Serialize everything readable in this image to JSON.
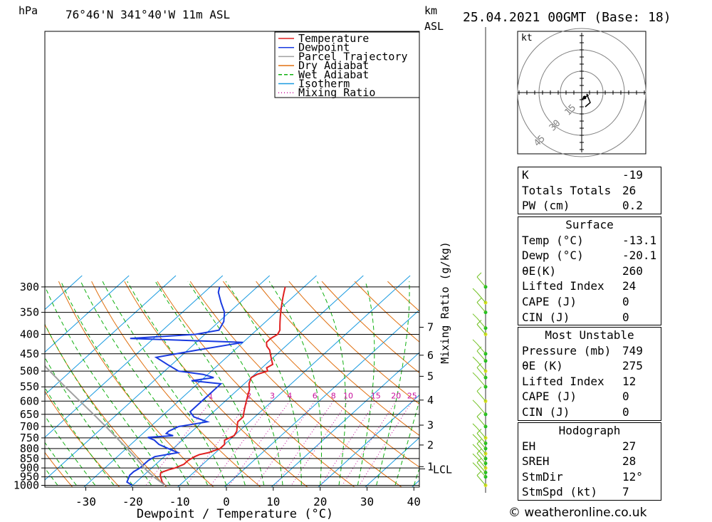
{
  "header": {
    "hpa_label": "hPa",
    "location": "76°46'N  341°40'W  11m  ASL",
    "km_label": "km",
    "asl_label": "ASL",
    "datetime": "25.04.2021  00GMT  (Base: 18)"
  },
  "chart_data": {
    "type": "line",
    "title": "76°46'N  341°40'W  11m  ASL",
    "xlabel": "Dewpoint / Temperature (°C)",
    "ylabel": "hPa",
    "y2label": "Mixing Ratio (g/kg)",
    "xlim": [
      -40,
      40
    ],
    "ylim": [
      1000,
      300
    ],
    "x_ticks": [
      "-30",
      "-20",
      "-10",
      "0",
      "10",
      "20",
      "30",
      "40"
    ],
    "p_ticks": [
      "300",
      "350",
      "400",
      "450",
      "500",
      "550",
      "600",
      "650",
      "700",
      "750",
      "800",
      "850",
      "900",
      "950",
      "1000"
    ],
    "km_ticks": [
      {
        "label": "7",
        "p": 383
      },
      {
        "label": "6",
        "p": 454
      },
      {
        "label": "5",
        "p": 516
      },
      {
        "label": "4",
        "p": 596
      },
      {
        "label": "3",
        "p": 694
      },
      {
        "label": "2",
        "p": 783
      },
      {
        "label": "1",
        "p": 893
      }
    ],
    "lcl": {
      "label": "LCL",
      "p": 905
    },
    "mixing_ratio_labels": [
      "1",
      "2",
      "3",
      "4",
      "6",
      "8",
      "10",
      "15",
      "20",
      "25"
    ],
    "legend": [
      {
        "name": "Temperature",
        "color": "#e02020",
        "style": "solid"
      },
      {
        "name": "Dewpoint",
        "color": "#1a3be0",
        "style": "solid"
      },
      {
        "name": "Parcel Trajectory",
        "color": "#a0a0a0",
        "style": "solid"
      },
      {
        "name": "Dry Adiabat",
        "color": "#e07010",
        "style": "solid"
      },
      {
        "name": "Wet Adiabat",
        "color": "#10b010",
        "style": "dashed"
      },
      {
        "name": "Isotherm",
        "color": "#1a9be0",
        "style": "solid"
      },
      {
        "name": "Mixing Ratio",
        "color": "#c8109c",
        "style": "dotted"
      }
    ],
    "series": [
      {
        "name": "Temperature",
        "color": "#e02020",
        "points": [
          [
            1000,
            -13.1
          ],
          [
            980,
            -14.5
          ],
          [
            960,
            -15.5
          ],
          [
            940,
            -16.5
          ],
          [
            925,
            -17
          ],
          [
            910,
            -16
          ],
          [
            900,
            -15
          ],
          [
            880,
            -14
          ],
          [
            860,
            -14
          ],
          [
            840,
            -13.5
          ],
          [
            830,
            -13
          ],
          [
            820,
            -11.5
          ],
          [
            800,
            -10
          ],
          [
            780,
            -10
          ],
          [
            760,
            -11
          ],
          [
            740,
            -10
          ],
          [
            720,
            -10.5
          ],
          [
            700,
            -11.5
          ],
          [
            680,
            -12.5
          ],
          [
            660,
            -12.5
          ],
          [
            640,
            -13.5
          ],
          [
            620,
            -14.5
          ],
          [
            600,
            -15.5
          ],
          [
            580,
            -16.5
          ],
          [
            560,
            -17.5
          ],
          [
            540,
            -19
          ],
          [
            520,
            -20
          ],
          [
            510,
            -19.5
          ],
          [
            500,
            -18
          ],
          [
            490,
            -19
          ],
          [
            480,
            -18.5
          ],
          [
            470,
            -19.5
          ],
          [
            460,
            -20.5
          ],
          [
            450,
            -21.5
          ],
          [
            440,
            -22.5
          ],
          [
            430,
            -24
          ],
          [
            420,
            -25
          ],
          [
            410,
            -25
          ],
          [
            400,
            -24.5
          ],
          [
            390,
            -25
          ],
          [
            380,
            -26
          ],
          [
            370,
            -27
          ],
          [
            360,
            -28
          ],
          [
            350,
            -29
          ],
          [
            340,
            -30
          ],
          [
            330,
            -31
          ],
          [
            320,
            -32
          ],
          [
            310,
            -33
          ],
          [
            300,
            -34
          ]
        ]
      },
      {
        "name": "Dewpoint",
        "color": "#1a3be0",
        "points": [
          [
            1000,
            -20.1
          ],
          [
            980,
            -22
          ],
          [
            960,
            -22.5
          ],
          [
            940,
            -23
          ],
          [
            920,
            -23
          ],
          [
            900,
            -22.5
          ],
          [
            880,
            -22.5
          ],
          [
            860,
            -22.5
          ],
          [
            840,
            -22
          ],
          [
            820,
            -18
          ],
          [
            800,
            -21
          ],
          [
            780,
            -24
          ],
          [
            760,
            -26
          ],
          [
            748,
            -28
          ],
          [
            740,
            -23
          ],
          [
            730,
            -25
          ],
          [
            720,
            -25
          ],
          [
            700,
            -24
          ],
          [
            680,
            -19
          ],
          [
            660,
            -23
          ],
          [
            640,
            -25
          ],
          [
            620,
            -25
          ],
          [
            600,
            -25
          ],
          [
            580,
            -25
          ],
          [
            560,
            -25
          ],
          [
            540,
            -25
          ],
          [
            530,
            -32
          ],
          [
            520,
            -28
          ],
          [
            510,
            -31
          ],
          [
            500,
            -37
          ],
          [
            480,
            -41
          ],
          [
            460,
            -45
          ],
          [
            440,
            -38
          ],
          [
            420,
            -30
          ],
          [
            410,
            -55
          ],
          [
            400,
            -42
          ],
          [
            390,
            -38
          ],
          [
            370,
            -39
          ],
          [
            350,
            -41
          ],
          [
            330,
            -44
          ],
          [
            310,
            -47
          ],
          [
            300,
            -48
          ]
        ]
      },
      {
        "name": "Parcel Trajectory",
        "color": "#a0a0a0",
        "points": [
          [
            1000,
            -13.1
          ],
          [
            950,
            -17.5
          ],
          [
            905,
            -21.2
          ],
          [
            850,
            -25.5
          ],
          [
            800,
            -29.8
          ],
          [
            750,
            -34.5
          ],
          [
            700,
            -39.5
          ],
          [
            650,
            -45
          ],
          [
            600,
            -51
          ],
          [
            550,
            -57.5
          ],
          [
            500,
            -64.5
          ],
          [
            450,
            -72
          ]
        ]
      }
    ]
  },
  "hodograph": {
    "unit": "kt",
    "rings": [
      "15",
      "30",
      "45"
    ]
  },
  "indices": {
    "k_label": "K",
    "k_value": "-19",
    "tt_label": "Totals Totals",
    "tt_value": "26",
    "pw_label": "PW (cm)",
    "pw_value": "0.2"
  },
  "surface": {
    "header": "Surface",
    "rows": [
      {
        "label": "Temp (°C)",
        "value": "-13.1"
      },
      {
        "label": "Dewp (°C)",
        "value": "-20.1"
      },
      {
        "label": "θE(K)",
        "value": "260"
      },
      {
        "label": "Lifted Index",
        "value": "24"
      },
      {
        "label": "CAPE (J)",
        "value": "0"
      },
      {
        "label": "CIN (J)",
        "value": "0"
      }
    ]
  },
  "most_unstable": {
    "header": "Most Unstable",
    "rows": [
      {
        "label": "Pressure (mb)",
        "value": "749"
      },
      {
        "label": "θE (K)",
        "value": "275"
      },
      {
        "label": "Lifted Index",
        "value": "12"
      },
      {
        "label": "CAPE (J)",
        "value": "0"
      },
      {
        "label": "CIN (J)",
        "value": "0"
      }
    ]
  },
  "hodograph_table": {
    "header": "Hodograph",
    "rows": [
      {
        "label": "EH",
        "value": "27"
      },
      {
        "label": "SREH",
        "value": "28"
      },
      {
        "label": "StmDir",
        "value": "12°"
      },
      {
        "label": "StmSpd (kt)",
        "value": "7"
      }
    ]
  },
  "footer": "© weatheronline.co.uk"
}
